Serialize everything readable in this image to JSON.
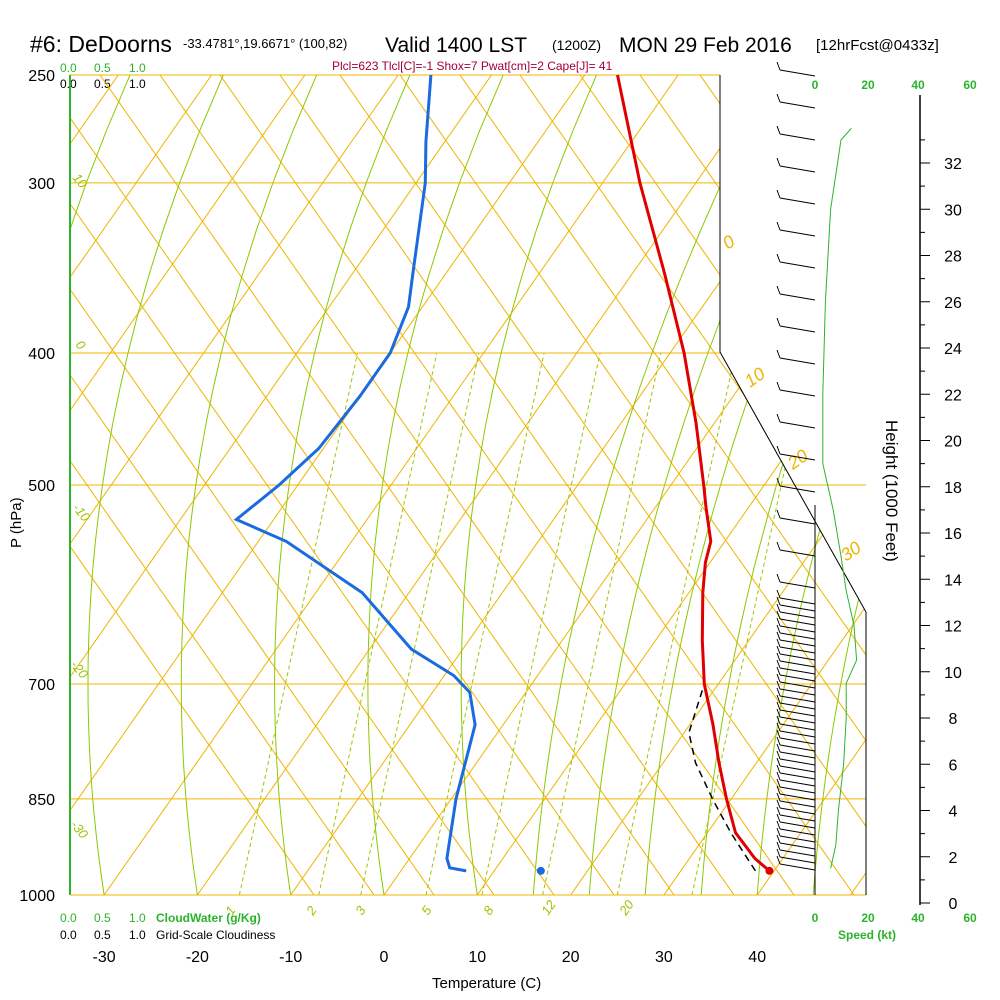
{
  "header": {
    "station": "#6: DeDoorns",
    "coords": "-33.4781°,19.6671° (100,82)",
    "valid": "Valid 1400 LST",
    "utc": "(1200Z)",
    "date": "MON 29 Feb 2016",
    "forecast": "[12hrFcst@0433z]",
    "indices": "Plcl=623 Tlcl[C]=-1 Shox=7 Pwat[cm]=2 Cape[J]= 41"
  },
  "colors": {
    "isotherm": "#f0b400",
    "dry_adiabat": "#9fc400",
    "moist_adiabat": "#8cc800",
    "mixing_ratio": "#9fc400",
    "temperature": "#e00000",
    "dewpoint": "#1a6be0",
    "parcel": "#000000",
    "wind_speed": "#2bb32b",
    "indices_text": "#a0003c"
  },
  "chart_data": {
    "type": "skew-t",
    "xlabel": "Temperature (C)",
    "ylabel": "P (hPa)",
    "x_ticks": [
      -30,
      -20,
      -10,
      0,
      10,
      20,
      30,
      40
    ],
    "pressure_ticks": [
      250,
      300,
      400,
      500,
      700,
      850,
      1000
    ],
    "height_axis": {
      "label": "Height (1000 Feet)",
      "ticks": [
        0,
        2,
        4,
        6,
        8,
        10,
        12,
        14,
        16,
        18,
        20,
        22,
        24,
        26,
        28,
        30,
        32
      ]
    },
    "isotherm_labels": [
      0,
      10,
      20,
      30
    ],
    "dry_adiabat_labels": [
      10,
      0,
      -10,
      -20,
      -30
    ],
    "mixing_ratio_labels": [
      "1",
      "2",
      "3",
      "5",
      "8",
      "12",
      "20"
    ],
    "cloud_scale_top": [
      "0.0",
      "0.5",
      "1.0"
    ],
    "cloud_scale_top2": [
      "0.0",
      "0.5",
      "1.0"
    ],
    "cloud_scale_bottom": [
      "0.0",
      "0.5",
      "1.0"
    ],
    "cloud_scale_bottom2": [
      "0.0",
      "0.5",
      "1.0"
    ],
    "cloudwater_label": "CloudWater (g/Kg)",
    "cloudiness_label": "Grid-Scale Cloudiness",
    "speed_ticks": [
      "0",
      "20",
      "40",
      "60"
    ],
    "speed_label": "Speed (kt)",
    "temperature": [
      {
        "p": 960,
        "t": 39.5
      },
      {
        "p": 940,
        "t": 37.0
      },
      {
        "p": 900,
        "t": 33.0
      },
      {
        "p": 850,
        "t": 29.5
      },
      {
        "p": 800,
        "t": 26.0
      },
      {
        "p": 750,
        "t": 22.5
      },
      {
        "p": 700,
        "t": 18.5
      },
      {
        "p": 650,
        "t": 15.0
      },
      {
        "p": 600,
        "t": 11.5
      },
      {
        "p": 570,
        "t": 9.5
      },
      {
        "p": 550,
        "t": 8.5
      },
      {
        "p": 520,
        "t": 5.5
      },
      {
        "p": 500,
        "t": 3.5
      },
      {
        "p": 450,
        "t": -2.0
      },
      {
        "p": 400,
        "t": -8.5
      },
      {
        "p": 350,
        "t": -16.5
      },
      {
        "p": 300,
        "t": -26.0
      },
      {
        "p": 250,
        "t": -36.5
      }
    ],
    "dewpoint": [
      {
        "p": 960,
        "t": 7.0
      },
      {
        "p": 955,
        "t": 5.0
      },
      {
        "p": 940,
        "t": 4.0
      },
      {
        "p": 850,
        "t": 0.5
      },
      {
        "p": 750,
        "t": -3.0
      },
      {
        "p": 710,
        "t": -6.0
      },
      {
        "p": 690,
        "t": -9.0
      },
      {
        "p": 660,
        "t": -15.5
      },
      {
        "p": 600,
        "t": -25.0
      },
      {
        "p": 550,
        "t": -37.0
      },
      {
        "p": 530,
        "t": -44.0
      },
      {
        "p": 500,
        "t": -42.0
      },
      {
        "p": 470,
        "t": -40.5
      },
      {
        "p": 430,
        "t": -40.0
      },
      {
        "p": 400,
        "t": -40.0
      },
      {
        "p": 370,
        "t": -41.5
      },
      {
        "p": 350,
        "t": -43.5
      },
      {
        "p": 300,
        "t": -49.0
      },
      {
        "p": 280,
        "t": -52.0
      },
      {
        "p": 250,
        "t": -56.5
      }
    ],
    "parcel": [
      {
        "p": 960,
        "t": 38.0
      },
      {
        "p": 900,
        "t": 32.5
      },
      {
        "p": 850,
        "t": 28.0
      },
      {
        "p": 800,
        "t": 23.5
      },
      {
        "p": 760,
        "t": 20.5
      },
      {
        "p": 700,
        "t": 18.5
      }
    ],
    "surface_dewpoint_marker": {
      "p": 960,
      "t": 15.0
    },
    "surface_temperature_marker": {
      "p": 960,
      "t": 39.5
    },
    "wind_speed_profile": [
      {
        "h": 1.5,
        "kt": 6
      },
      {
        "h": 2.5,
        "kt": 8
      },
      {
        "h": 4,
        "kt": 9
      },
      {
        "h": 6,
        "kt": 11
      },
      {
        "h": 8,
        "kt": 12
      },
      {
        "h": 9.5,
        "kt": 12
      },
      {
        "h": 10.5,
        "kt": 16
      },
      {
        "h": 12,
        "kt": 15
      },
      {
        "h": 13.5,
        "kt": 12
      },
      {
        "h": 15,
        "kt": 10
      },
      {
        "h": 17,
        "kt": 7
      },
      {
        "h": 19,
        "kt": 3
      },
      {
        "h": 22,
        "kt": 3
      },
      {
        "h": 26,
        "kt": 4
      },
      {
        "h": 30,
        "kt": 6
      },
      {
        "h": 33,
        "kt": 10
      },
      {
        "h": 33.5,
        "kt": 14
      }
    ]
  }
}
